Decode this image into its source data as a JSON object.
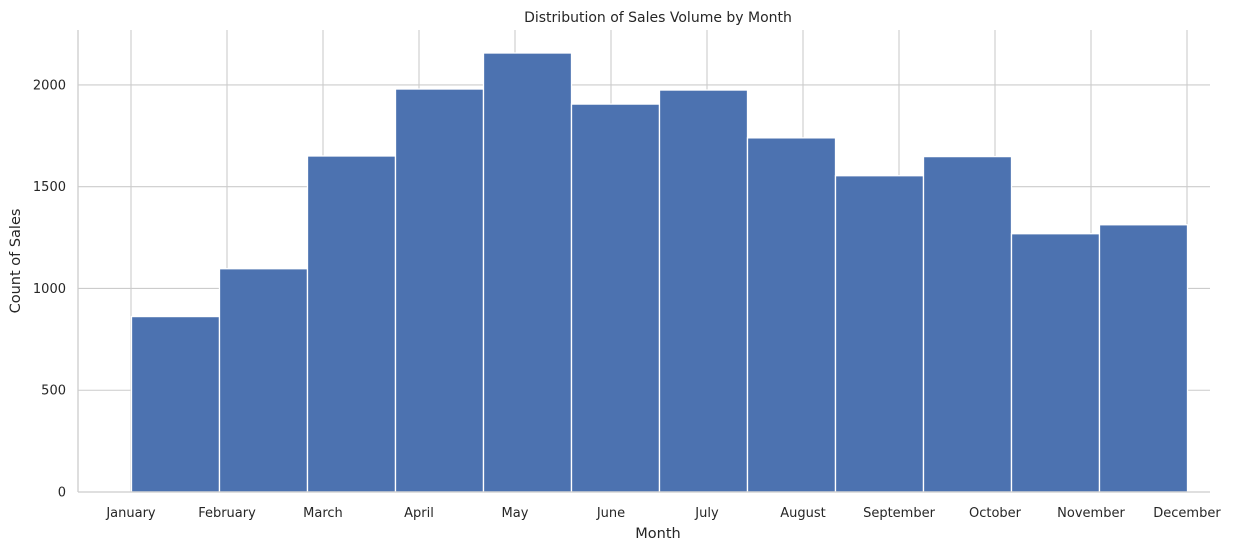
{
  "chart_data": {
    "type": "bar",
    "title": "Distribution of Sales Volume by Month",
    "xlabel": "Month",
    "ylabel": "Count of Sales",
    "categories": [
      "January",
      "February",
      "March",
      "April",
      "May",
      "June",
      "July",
      "August",
      "September",
      "October",
      "November",
      "December"
    ],
    "values": [
      862,
      1097,
      1651,
      1980,
      2157,
      1906,
      1975,
      1740,
      1554,
      1648,
      1269,
      1313
    ],
    "ylim": [
      0,
      2270
    ],
    "yticks": [
      0,
      500,
      1000,
      1500,
      2000
    ],
    "grid": true,
    "colors": {
      "bar": "#4c72b0",
      "grid": "#cccccc",
      "text": "#262626"
    }
  }
}
